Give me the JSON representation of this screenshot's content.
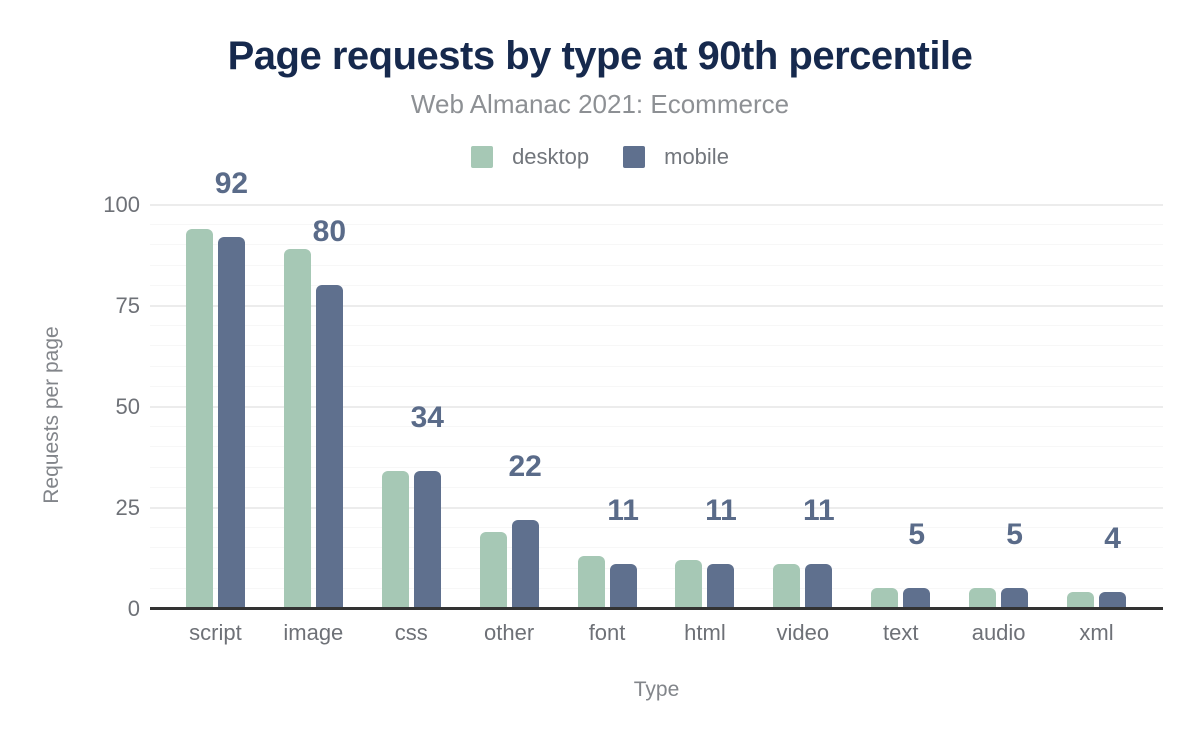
{
  "chart_data": {
    "type": "bar",
    "title": "Page requests by type at 90th percentile",
    "subtitle": "Web Almanac 2021: Ecommerce",
    "categories": [
      "script",
      "image",
      "css",
      "other",
      "font",
      "html",
      "video",
      "text",
      "audio",
      "xml"
    ],
    "series": [
      {
        "name": "desktop",
        "color": "#a6c8b5",
        "values": [
          94,
          89,
          34,
          19,
          13,
          12,
          11,
          5,
          5,
          4
        ]
      },
      {
        "name": "mobile",
        "color": "#5f708e",
        "values": [
          92,
          80,
          34,
          22,
          11,
          11,
          11,
          5,
          5,
          4
        ]
      }
    ],
    "data_labels": {
      "series": "mobile",
      "values": [
        "92",
        "80",
        "34",
        "22",
        "11",
        "11",
        "11",
        "5",
        "5",
        "4"
      ],
      "color": "#5a6b89"
    },
    "xlabel": "Type",
    "ylabel": "Requests per page",
    "ylim": [
      0,
      100
    ],
    "yticks": [
      "0",
      "25",
      "50",
      "75",
      "100"
    ],
    "grid": {
      "minor_step": 5,
      "major_step": 25,
      "minor_color": "#f7f7f7",
      "major_color": "#ececec"
    },
    "legend_position": "top",
    "colors": {
      "title": "#16294d",
      "subtitle": "#8d9094",
      "legend_text": "#72767c",
      "tick_text": "#6e7177",
      "axis_title_text": "#82858a",
      "axis_line": "#333333"
    }
  }
}
